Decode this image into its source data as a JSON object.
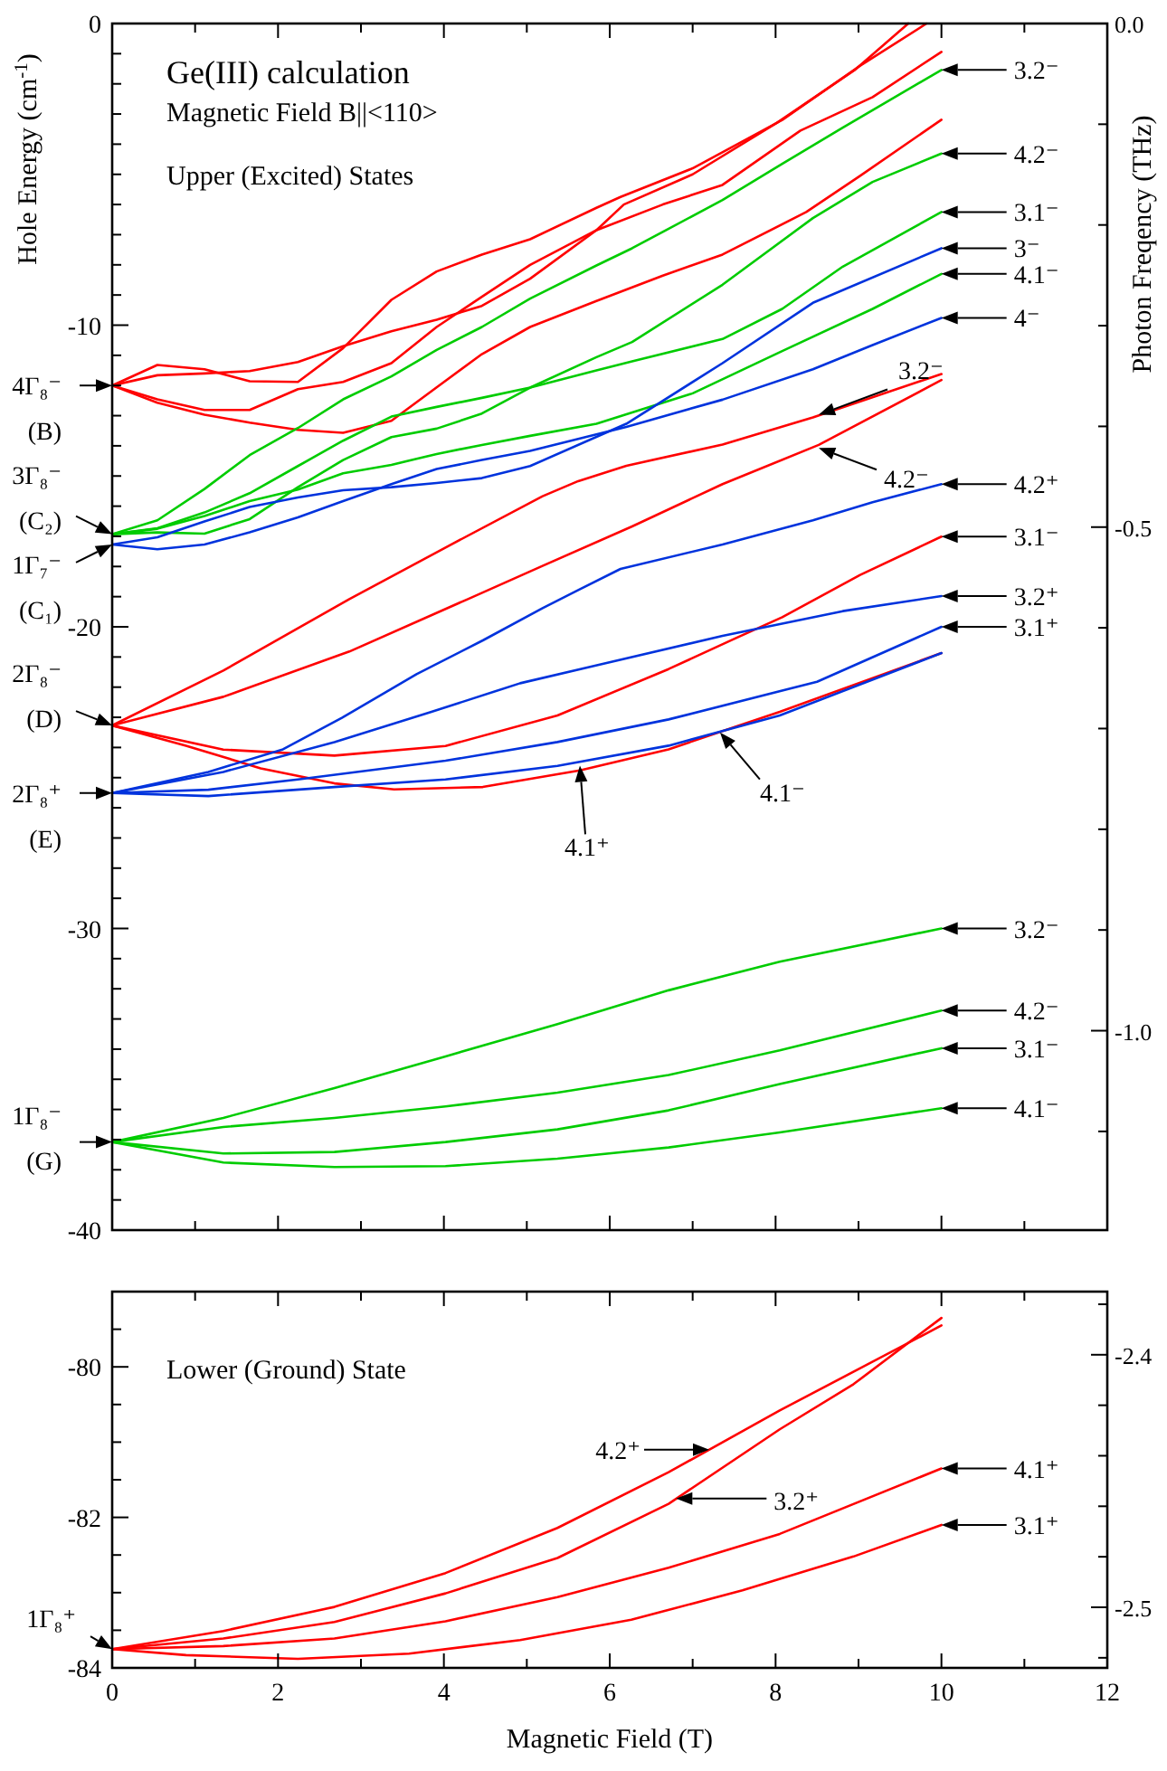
{
  "chart_data": [
    {
      "type": "line",
      "title": "Ge(III) calculation",
      "subtitle": "Magnetic Field B||<110>",
      "ylabel": "Hole Energy (cm$^{-1}$)",
      "y2label": "Photon Freqency (THz)",
      "xlim": [
        0,
        12
      ],
      "tick_labels": "y",
      "xticks": [
        0,
        {
          "value": 1,
          "label": null
        },
        2,
        {
          "value": 3,
          "label": null
        },
        4,
        {
          "value": 5,
          "label": null
        },
        6,
        {
          "value": 7,
          "label": null
        },
        8,
        {
          "value": 9,
          "label": null
        },
        10,
        {
          "value": 11,
          "label": null
        },
        12
      ],
      "ylim": [
        -40,
        0
      ],
      "yticks": [
        0,
        {
          "value": -1,
          "label": null
        },
        {
          "value": -2,
          "label": null
        },
        {
          "value": -3,
          "label": null
        },
        {
          "value": -4,
          "label": null
        },
        {
          "value": -5,
          "label": null
        },
        {
          "value": -6,
          "label": null
        },
        {
          "value": -7,
          "label": null
        },
        {
          "value": -8,
          "label": null
        },
        {
          "value": -9,
          "label": null
        },
        -10,
        {
          "value": -11,
          "label": null
        },
        {
          "value": -12,
          "label": null
        },
        {
          "value": -13,
          "label": null
        },
        {
          "value": -14,
          "label": null
        },
        {
          "value": -15,
          "label": null
        },
        {
          "value": -16,
          "label": null
        },
        {
          "value": -17,
          "label": null
        },
        {
          "value": -18,
          "label": null
        },
        {
          "value": -19,
          "label": null
        },
        -20,
        {
          "value": -21,
          "label": null
        },
        {
          "value": -22,
          "label": null
        },
        {
          "value": -23,
          "label": null
        },
        {
          "value": -24,
          "label": null
        },
        {
          "value": -25,
          "label": null
        },
        {
          "value": -26,
          "label": null
        },
        {
          "value": -27,
          "label": null
        },
        {
          "value": -28,
          "label": null
        },
        {
          "value": -29,
          "label": null
        },
        -30,
        {
          "value": -31,
          "label": null
        },
        {
          "value": -32,
          "label": null
        },
        {
          "value": -33,
          "label": null
        },
        {
          "value": -34,
          "label": null
        },
        {
          "value": -35,
          "label": null
        },
        {
          "value": -36,
          "label": null
        },
        {
          "value": -37,
          "label": null
        },
        {
          "value": -38,
          "label": null
        },
        {
          "value": -39,
          "label": null
        },
        -40
      ],
      "y2lim": [
        -1.198,
        0
      ],
      "y2ticks": [
        {
          "value": 0,
          "label": "0.0"
        },
        {
          "value": -0.1,
          "label": null
        },
        {
          "value": -0.2,
          "label": null
        },
        {
          "value": -0.3,
          "label": null
        },
        {
          "value": -0.4,
          "label": null
        },
        -0.5,
        {
          "value": -0.6,
          "label": null
        },
        {
          "value": -0.7,
          "label": null
        },
        {
          "value": -0.8,
          "label": null
        },
        {
          "value": -0.9,
          "label": null
        },
        {
          "value": -1,
          "label": "-1.0"
        },
        {
          "value": -1.1,
          "label": null
        }
      ],
      "series": [
        {
          "color": "#ff0000",
          "x": [
            0,
            0.545,
            1.113,
            1.658,
            2.24,
            2.785,
            3.367,
            3.913,
            4.458,
            5.04,
            5.84,
            6.13,
            7.0,
            8.08,
            9.02,
            9.82
          ],
          "values": [
            -12,
            -11.32,
            -11.46,
            -11.86,
            -11.88,
            -10.76,
            -9.16,
            -8.22,
            -7.66,
            -7.15,
            -6.11,
            -5.75,
            -4.8,
            -3.2,
            -1.4,
            0
          ]
        },
        {
          "color": "#ff0000",
          "x": [
            0,
            0.545,
            1.113,
            1.658,
            2.24,
            2.785,
            3.367,
            3.913,
            4.458,
            5.04,
            5.84,
            6.17,
            7.0,
            8.01,
            8.95,
            9.6
          ],
          "values": [
            -12,
            -11.66,
            -11.6,
            -11.52,
            -11.22,
            -10.7,
            -10.2,
            -9.82,
            -9.36,
            -8.46,
            -6.85,
            -6.0,
            -5.0,
            -3.3,
            -1.55,
            0
          ]
        },
        {
          "color": "#ff0000",
          "x": [
            0,
            0.545,
            1.113,
            1.658,
            2.24,
            2.785,
            3.367,
            3.913,
            4.458,
            5.04,
            5.84,
            6.64,
            7.36,
            8.3,
            9.17,
            10
          ],
          "values": [
            -12,
            -12.46,
            -12.81,
            -12.81,
            -12.12,
            -11.88,
            -11.26,
            -10.06,
            -9.06,
            -8.0,
            -6.85,
            -6.0,
            -5.35,
            -3.55,
            -2.44,
            -0.94
          ]
        },
        {
          "color": "#ff0000",
          "x": [
            0,
            0.545,
            1.113,
            1.658,
            2.24,
            2.785,
            3.367,
            3.913,
            4.458,
            5.04,
            5.84,
            6.64,
            7.36,
            8.37,
            9.02,
            10
          ],
          "values": [
            -12,
            -12.57,
            -12.97,
            -13.23,
            -13.47,
            -13.57,
            -13.17,
            -12.06,
            -10.96,
            -10.06,
            -9.2,
            -8.36,
            -7.66,
            -6.25,
            -5.05,
            -3.19
          ]
        },
        {
          "color": "#00cc00",
          "x": [
            0,
            0.545,
            1.113,
            1.658,
            2.24,
            2.785,
            3.367,
            3.913,
            4.458,
            5.04,
            5.84,
            6.27,
            7.36,
            8.08,
            8.81,
            10
          ],
          "values": [
            -16.93,
            -16.47,
            -15.43,
            -14.31,
            -13.41,
            -12.46,
            -11.7,
            -10.82,
            -10.06,
            -9.12,
            -8.02,
            -7.45,
            -5.85,
            -4.65,
            -3.45,
            -1.54
          ]
        },
        {
          "color": "#00cc00",
          "x": [
            0,
            0.545,
            1.113,
            1.658,
            2.24,
            2.785,
            3.367,
            3.913,
            4.458,
            5.04,
            5.84,
            6.27,
            7.36,
            8.08,
            8.81,
            10
          ],
          "values": [
            -16.93,
            -16.73,
            -16.21,
            -15.57,
            -14.67,
            -13.83,
            -13.03,
            -12.71,
            -12.41,
            -12.07,
            -11.5,
            -11.2,
            -10.46,
            -9.46,
            -8.06,
            -6.25
          ]
        },
        {
          "color": "#00cc00",
          "x": [
            0,
            0.545,
            1.113,
            1.658,
            2.24,
            2.785,
            3.367,
            3.913,
            4.458,
            5.04,
            5.84,
            6.27,
            7.36,
            8.45,
            9.17,
            10
          ],
          "values": [
            -16.93,
            -16.87,
            -16.91,
            -16.43,
            -15.37,
            -14.47,
            -13.71,
            -13.43,
            -12.93,
            -12.07,
            -11.06,
            -10.56,
            -8.66,
            -6.45,
            -5.25,
            -4.31
          ]
        },
        {
          "color": "#00cc00",
          "x": [
            0,
            0.545,
            1.113,
            1.658,
            2.24,
            2.785,
            3.367,
            3.913,
            4.458,
            5.04,
            5.84,
            7.0,
            8.08,
            9.17,
            10
          ],
          "values": [
            -16.93,
            -16.75,
            -16.33,
            -15.83,
            -15.45,
            -14.91,
            -14.63,
            -14.27,
            -13.97,
            -13.67,
            -13.27,
            -12.26,
            -10.86,
            -9.46,
            -8.3
          ]
        },
        {
          "color": "#0033dd",
          "x": [
            0,
            0.545,
            1.113,
            1.658,
            2.24,
            2.785,
            3.367,
            3.913,
            4.458,
            5.04,
            6.2,
            7.36,
            8.45,
            10
          ],
          "values": [
            -17.27,
            -17.03,
            -16.51,
            -16.03,
            -15.71,
            -15.47,
            -15.37,
            -15.23,
            -15.07,
            -14.67,
            -13.27,
            -11.26,
            -9.26,
            -7.45
          ]
        },
        {
          "color": "#0033dd",
          "x": [
            0,
            0.545,
            1.113,
            1.658,
            2.24,
            2.785,
            3.367,
            3.913,
            4.458,
            5.04,
            6.2,
            7.36,
            8.45,
            9.17,
            10
          ],
          "values": [
            -17.27,
            -17.43,
            -17.27,
            -16.87,
            -16.37,
            -15.83,
            -15.27,
            -14.77,
            -14.47,
            -14.17,
            -13.37,
            -12.47,
            -11.46,
            -10.66,
            -9.76
          ]
        },
        {
          "color": "#ff0000",
          "x": [
            0,
            1.34,
            2.86,
            4.0,
            5.19,
            5.62,
            6.2,
            7.36,
            8.45,
            10
          ],
          "values": [
            -23.27,
            -21.45,
            -19.08,
            -17.4,
            -15.67,
            -15.17,
            -14.66,
            -13.96,
            -13.06,
            -11.62
          ]
        },
        {
          "color": "#ff0000",
          "x": [
            0,
            1.34,
            2.86,
            4.29,
            5.19,
            6.27,
            7.36,
            8.52,
            10
          ],
          "values": [
            -23.27,
            -22.32,
            -20.82,
            -19.08,
            -17.98,
            -16.67,
            -15.27,
            -13.97,
            -11.82
          ]
        },
        {
          "color": "#ff0000",
          "x": [
            0,
            1.34,
            2.68,
            4.02,
            5.37,
            6.71,
            7.5,
            8.08,
            9.02,
            10
          ],
          "values": [
            -23.27,
            -24.07,
            -24.27,
            -23.95,
            -22.94,
            -21.4,
            -20.4,
            -19.68,
            -18.28,
            -17.01
          ]
        },
        {
          "color": "#ff0000",
          "x": [
            0,
            0.89,
            1.79,
            2.68,
            3.4,
            4.47,
            5.64,
            6.71,
            8.05,
            10
          ],
          "values": [
            -23.27,
            -23.94,
            -24.69,
            -25.19,
            -25.39,
            -25.31,
            -24.76,
            -24.06,
            -22.82,
            -20.87
          ]
        },
        {
          "color": "#0033dd",
          "x": [
            0,
            1.16,
            2.06,
            2.77,
            3.67,
            4.47,
            5.19,
            5.62,
            6.13,
            7.36,
            8.45,
            9.17,
            10
          ],
          "values": [
            -25.51,
            -24.81,
            -24.06,
            -23.02,
            -21.57,
            -20.45,
            -19.38,
            -18.78,
            -18.08,
            -17.27,
            -16.47,
            -15.87,
            -15.27
          ]
        },
        {
          "color": "#0033dd",
          "x": [
            0,
            1.34,
            2.68,
            3.85,
            4.92,
            5.81,
            7.36,
            8.81,
            10
          ],
          "values": [
            -25.51,
            -24.81,
            -23.82,
            -22.82,
            -21.87,
            -21.3,
            -20.3,
            -19.48,
            -18.98
          ]
        },
        {
          "color": "#0033dd",
          "x": [
            0,
            1.16,
            2.24,
            4.02,
            5.37,
            6.71,
            8.5,
            10
          ],
          "values": [
            -25.51,
            -25.4,
            -25.06,
            -24.44,
            -23.82,
            -23.07,
            -21.82,
            -20.0
          ]
        },
        {
          "color": "#0033dd",
          "x": [
            0,
            1.16,
            2.68,
            4.02,
            5.37,
            6.71,
            8.05,
            10
          ],
          "values": [
            -25.51,
            -25.61,
            -25.31,
            -25.06,
            -24.61,
            -23.94,
            -22.94,
            -20.87
          ]
        },
        {
          "color": "#00cc00",
          "x": [
            0,
            1.34,
            2.68,
            4.02,
            5.37,
            6.71,
            8.05,
            10
          ],
          "values": [
            -37.08,
            -36.28,
            -35.29,
            -34.24,
            -33.17,
            -32.05,
            -31.1,
            -30.0
          ]
        },
        {
          "color": "#00cc00",
          "x": [
            0,
            1.34,
            2.68,
            4.02,
            5.37,
            6.71,
            8.05,
            10
          ],
          "values": [
            -37.08,
            -36.58,
            -36.28,
            -35.9,
            -35.44,
            -34.86,
            -34.04,
            -32.72
          ]
        },
        {
          "color": "#00cc00",
          "x": [
            0,
            1.34,
            2.68,
            4.02,
            5.37,
            6.71,
            8.05,
            10
          ],
          "values": [
            -37.08,
            -37.46,
            -37.41,
            -37.08,
            -36.66,
            -36.03,
            -35.16,
            -33.97
          ]
        },
        {
          "color": "#00cc00",
          "x": [
            0,
            1.34,
            2.68,
            4.02,
            5.37,
            6.71,
            8.05,
            10
          ],
          "values": [
            -37.08,
            -37.76,
            -37.91,
            -37.88,
            -37.63,
            -37.26,
            -36.76,
            -35.96
          ]
        }
      ],
      "annotations": [
        "Upper (Excited) States",
        {
          "text": "4Γ₈⁻ (B)",
          "x": 0,
          "y": -12
        },
        {
          "text": "3Γ₈⁻ (C₂)",
          "x": 0,
          "y": -16.93
        },
        {
          "text": "1Γ₇⁻ (C₁)",
          "x": 0,
          "y": -17.27
        },
        {
          "text": "2Γ₈⁻ (D)",
          "x": 0,
          "y": -23.27
        },
        {
          "text": "2Γ₈⁺ (E)",
          "x": 0,
          "y": -25.51
        },
        {
          "text": "1Γ₈⁻ (G)",
          "x": 0,
          "y": -37.08
        },
        {
          "text": "3.2⁻",
          "x": 10,
          "y": -1.54
        },
        {
          "text": "4.2⁻",
          "x": 10,
          "y": -4.31
        },
        {
          "text": "3.1⁻",
          "x": 10,
          "y": -6.25
        },
        {
          "text": "3⁻",
          "x": 10,
          "y": -7.45
        },
        {
          "text": "4.1⁻",
          "x": 10,
          "y": -8.3
        },
        {
          "text": "4⁻",
          "x": 10,
          "y": -9.76
        },
        {
          "text": "3.2⁻",
          "x": 8.52,
          "y": -12.97
        },
        {
          "text": "4.2⁻",
          "x": 8.52,
          "y": -14.07
        },
        {
          "text": "4.2⁺",
          "x": 10,
          "y": -15.27
        },
        {
          "text": "3.1⁻",
          "x": 10,
          "y": -17.01
        },
        {
          "text": "3.2⁺",
          "x": 10,
          "y": -18.98
        },
        {
          "text": "3.1⁺",
          "x": 10,
          "y": -20.0
        },
        {
          "text": "4.1⁺",
          "x": 5.64,
          "y": -24.6
        },
        {
          "text": "4.1⁻",
          "x": 7.33,
          "y": -23.5
        },
        {
          "text": "3.2⁻",
          "x": 10,
          "y": -30.0
        },
        {
          "text": "4.2⁻",
          "x": 10,
          "y": -32.72
        },
        {
          "text": "3.1⁻",
          "x": 10,
          "y": -33.97
        },
        {
          "text": "4.1⁻",
          "x": 10,
          "y": -35.96
        }
      ]
    },
    {
      "type": "line",
      "xlabel": "Magnetic Field (T)",
      "xlim": [
        0,
        12
      ],
      "xticks": [
        0,
        {
          "value": 1,
          "label": null
        },
        2,
        {
          "value": 3,
          "label": null
        },
        4,
        {
          "value": 5,
          "label": null
        },
        6,
        {
          "value": 7,
          "label": null
        },
        8,
        {
          "value": 9,
          "label": null
        },
        10,
        {
          "value": 11,
          "label": null
        },
        12
      ],
      "ylim": [
        -84,
        -79
      ],
      "yticks": [
        {
          "value": -79.5,
          "label": null
        },
        -80,
        {
          "value": -80.5,
          "label": null
        },
        {
          "value": -81,
          "label": null
        },
        {
          "value": -81.5,
          "label": null
        },
        -82,
        {
          "value": -82.5,
          "label": null
        },
        {
          "value": -83,
          "label": null
        },
        {
          "value": -83.5,
          "label": null
        },
        -84
      ],
      "y2lim": [
        -2.524,
        -2.375
      ],
      "y2ticks": [
        {
          "value": -2.38,
          "label": null
        },
        -2.4,
        {
          "value": -2.42,
          "label": null
        },
        {
          "value": -2.44,
          "label": null
        },
        {
          "value": -2.46,
          "label": null
        },
        {
          "value": -2.48,
          "label": null
        },
        -2.5,
        {
          "value": -2.52,
          "label": null
        }
      ],
      "series": [
        {
          "color": "#ff0000",
          "x": [
            0,
            1.34,
            2.68,
            4.02,
            5.37,
            6.71,
            8.05,
            10
          ],
          "values": [
            -83.75,
            -83.51,
            -83.19,
            -82.74,
            -82.14,
            -81.4,
            -80.58,
            -79.45
          ]
        },
        {
          "color": "#ff0000",
          "x": [
            0,
            1.34,
            2.68,
            4.02,
            5.37,
            6.71,
            8.05,
            8.94,
            10
          ],
          "values": [
            -83.75,
            -83.61,
            -83.39,
            -83.01,
            -82.54,
            -81.82,
            -80.83,
            -80.23,
            -79.35
          ]
        },
        {
          "color": "#ff0000",
          "x": [
            0,
            1.34,
            2.68,
            4.02,
            5.37,
            6.71,
            8.05,
            10
          ],
          "values": [
            -83.75,
            -83.71,
            -83.61,
            -83.38,
            -83.06,
            -82.67,
            -82.22,
            -81.35
          ]
        },
        {
          "color": "#ff0000",
          "x": [
            0,
            0.89,
            2.24,
            3.58,
            4.92,
            6.26,
            7.6,
            8.94,
            10
          ],
          "values": [
            -83.75,
            -83.83,
            -83.88,
            -83.81,
            -83.63,
            -83.36,
            -82.97,
            -82.52,
            -82.1
          ]
        }
      ],
      "annotations": [
        "Lower (Ground) State",
        {
          "text": "1Γ₈⁺",
          "x": 0,
          "y": -83.75
        },
        {
          "text": "4.2⁺",
          "x": 7.2,
          "y": -81.1
        },
        {
          "text": "3.2⁺",
          "x": 6.8,
          "y": -81.75
        },
        {
          "text": "4.1⁺",
          "x": 10,
          "y": -81.35
        },
        {
          "text": "3.1⁺",
          "x": 10,
          "y": -82.1
        }
      ]
    }
  ]
}
